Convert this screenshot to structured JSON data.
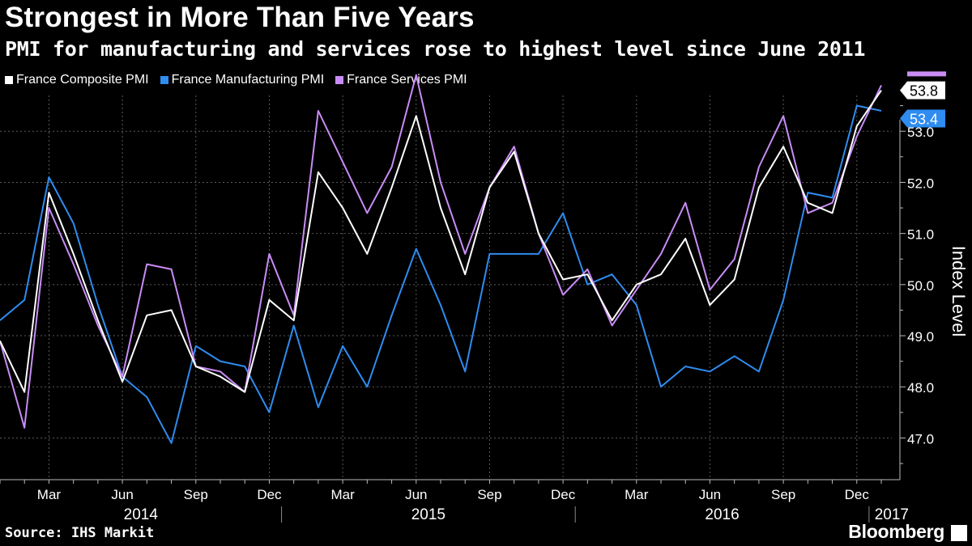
{
  "header": {
    "title": "Strongest in More Than Five Years",
    "subtitle": "PMI for manufacturing and services rose to highest level since June 2011"
  },
  "footer": {
    "source": "Source: IHS Markit",
    "brand": "Bloomberg"
  },
  "chart_data": {
    "type": "line",
    "title": "Strongest in More Than Five Years",
    "subtitle": "PMI for manufacturing and services rose to highest level since June 2011",
    "xlabel": "",
    "ylabel": "Index Level",
    "ylim": [
      46.2,
      53.7
    ],
    "yticks": [
      47.0,
      48.0,
      49.0,
      50.0,
      51.0,
      52.0,
      53.0
    ],
    "x": [
      "2014-01",
      "2014-02",
      "2014-03",
      "2014-04",
      "2014-05",
      "2014-06",
      "2014-07",
      "2014-08",
      "2014-09",
      "2014-10",
      "2014-11",
      "2014-12",
      "2015-01",
      "2015-02",
      "2015-03",
      "2015-04",
      "2015-05",
      "2015-06",
      "2015-07",
      "2015-08",
      "2015-09",
      "2015-10",
      "2015-11",
      "2015-12",
      "2016-01",
      "2016-02",
      "2016-03",
      "2016-04",
      "2016-05",
      "2016-06",
      "2016-07",
      "2016-08",
      "2016-09",
      "2016-10",
      "2016-11",
      "2016-12",
      "2017-01"
    ],
    "month_ticks": [
      {
        "label": "Mar",
        "x": "2014-03"
      },
      {
        "label": "Jun",
        "x": "2014-06"
      },
      {
        "label": "Sep",
        "x": "2014-09"
      },
      {
        "label": "Dec",
        "x": "2014-12"
      },
      {
        "label": "Mar",
        "x": "2015-03"
      },
      {
        "label": "Jun",
        "x": "2015-06"
      },
      {
        "label": "Sep",
        "x": "2015-09"
      },
      {
        "label": "Dec",
        "x": "2015-12"
      },
      {
        "label": "Mar",
        "x": "2016-03"
      },
      {
        "label": "Jun",
        "x": "2016-06"
      },
      {
        "label": "Sep",
        "x": "2016-09"
      },
      {
        "label": "Dec",
        "x": "2016-12"
      }
    ],
    "years": [
      "2014",
      "2015",
      "2016",
      "2017"
    ],
    "grid": true,
    "legend_position": "top-left",
    "series": [
      {
        "name": "France Composite PMI",
        "color": "#ffffff",
        "values": [
          48.9,
          47.9,
          51.8,
          50.6,
          49.3,
          48.1,
          49.4,
          49.5,
          48.4,
          48.2,
          47.9,
          49.7,
          49.3,
          52.2,
          51.5,
          50.6,
          51.9,
          53.3,
          51.5,
          50.2,
          51.9,
          52.6,
          51.0,
          50.1,
          50.2,
          49.3,
          50.0,
          50.2,
          50.9,
          49.6,
          50.1,
          51.9,
          52.7,
          51.6,
          51.4,
          53.1,
          53.8
        ],
        "last_label": "53.8"
      },
      {
        "name": "France Manufacturing PMI",
        "color": "#2f8cf0",
        "values": [
          49.3,
          49.7,
          52.1,
          51.2,
          49.6,
          48.2,
          47.8,
          46.9,
          48.8,
          48.5,
          48.4,
          47.5,
          49.2,
          47.6,
          48.8,
          48.0,
          49.4,
          50.7,
          49.6,
          48.3,
          50.6,
          50.6,
          50.6,
          51.4,
          50.0,
          50.2,
          49.6,
          48.0,
          48.4,
          48.3,
          48.6,
          48.3,
          49.7,
          51.8,
          51.7,
          53.5,
          53.4
        ],
        "last_label": "53.4"
      },
      {
        "name": "France Services PMI",
        "color": "#c98cf5",
        "values": [
          48.9,
          47.2,
          51.5,
          50.4,
          49.2,
          48.2,
          50.4,
          50.3,
          48.4,
          48.3,
          47.9,
          50.6,
          49.4,
          53.4,
          52.4,
          51.4,
          52.3,
          54.1,
          52.0,
          50.6,
          51.9,
          52.7,
          51.0,
          49.8,
          50.3,
          49.2,
          49.9,
          50.6,
          51.6,
          49.9,
          50.5,
          52.3,
          53.3,
          51.4,
          51.6,
          52.9,
          53.9
        ],
        "last_label": ""
      }
    ]
  }
}
